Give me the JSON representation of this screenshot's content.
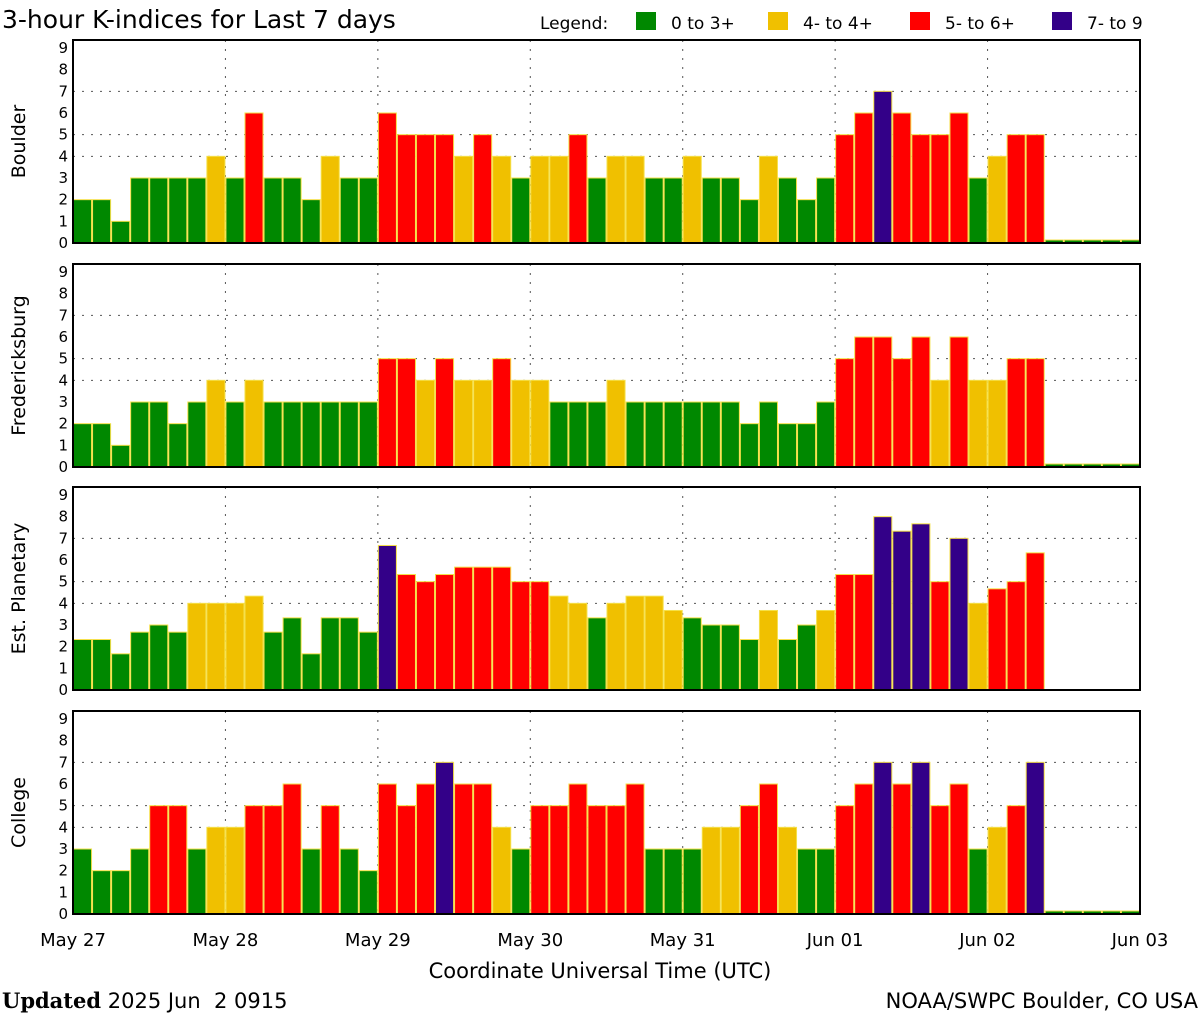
{
  "chart_data": {
    "type": "bar",
    "title": "3-hour K-indices for Last 7 days",
    "legend_label": "Legend:",
    "legend": [
      {
        "label": "0 to 3+",
        "color": "#008800"
      },
      {
        "label": "4- to 4+",
        "color": "#f0c000"
      },
      {
        "label": "5- to 6+",
        "color": "#ff0000"
      },
      {
        "label": "7- to 9",
        "color": "#330088"
      }
    ],
    "xlabel": "Coordinate Universal Time (UTC)",
    "x_ticks": [
      "May 27",
      "May 28",
      "May 29",
      "May 30",
      "May 31",
      "Jun 01",
      "Jun 02",
      "Jun 03"
    ],
    "y_ticks": [
      "0",
      "1",
      "2",
      "3",
      "4",
      "5",
      "6",
      "7",
      "8",
      "9"
    ],
    "ylim": [
      0,
      9
    ],
    "bars_per_day": 8,
    "series": [
      {
        "name": "Boulder",
        "values": [
          2,
          2,
          1,
          3,
          3,
          3,
          3,
          4,
          3,
          6,
          3,
          3,
          2,
          4,
          3,
          3,
          6,
          5,
          5,
          5,
          4,
          5,
          4,
          3,
          4,
          4,
          5,
          3,
          4,
          4,
          3,
          3,
          4,
          3,
          3,
          2,
          4,
          3,
          2,
          3,
          5,
          6,
          7,
          6,
          5,
          5,
          6,
          3,
          4,
          5,
          5,
          0,
          0,
          0,
          0,
          0
        ]
      },
      {
        "name": "Fredericksburg",
        "values": [
          2,
          2,
          1,
          3,
          3,
          2,
          3,
          4,
          3,
          4,
          3,
          3,
          3,
          3,
          3,
          3,
          5,
          5,
          4,
          5,
          4,
          4,
          5,
          4,
          4,
          3,
          3,
          3,
          4,
          3,
          3,
          3,
          3,
          3,
          3,
          2,
          3,
          2,
          2,
          3,
          5,
          6,
          6,
          5,
          6,
          4,
          6,
          4,
          4,
          5,
          5,
          0,
          0,
          0,
          0,
          0
        ]
      },
      {
        "name": "Est. Planetary",
        "values": [
          2.33,
          2.33,
          1.67,
          2.67,
          3,
          2.67,
          4,
          4,
          4,
          4.33,
          2.67,
          3.33,
          1.67,
          3.33,
          3.33,
          2.67,
          6.67,
          5.33,
          5,
          5.33,
          5.67,
          5.67,
          5.67,
          5,
          5,
          4.33,
          4,
          3.33,
          4,
          4.33,
          4.33,
          3.67,
          3.33,
          3,
          3,
          2.33,
          3.67,
          2.33,
          3,
          3.67,
          5.33,
          5.33,
          8,
          7.33,
          7.67,
          5,
          7,
          4,
          4.67,
          5,
          6.33,
          null,
          null,
          null,
          null,
          null
        ]
      },
      {
        "name": "College",
        "values": [
          3,
          2,
          2,
          3,
          5,
          5,
          3,
          4,
          4,
          5,
          5,
          6,
          3,
          5,
          3,
          2,
          6,
          5,
          6,
          7,
          6,
          6,
          4,
          3,
          5,
          5,
          6,
          5,
          5,
          6,
          3,
          3,
          3,
          4,
          4,
          5,
          6,
          4,
          3,
          3,
          5,
          6,
          7,
          6,
          7,
          5,
          6,
          3,
          4,
          5,
          7,
          0,
          0,
          0,
          0,
          0
        ]
      }
    ]
  },
  "footer": {
    "updated_label": "Updated",
    "updated_value": "2025 Jun  2 0915",
    "source": "NOAA/SWPC Boulder, CO USA"
  }
}
